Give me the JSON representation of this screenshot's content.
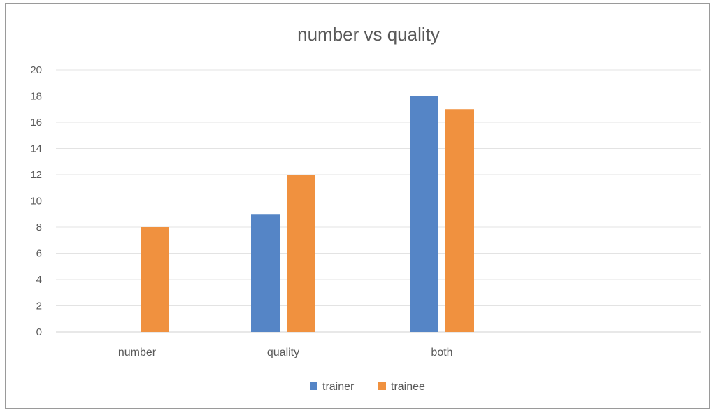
{
  "chart_data": {
    "type": "bar",
    "title": "number vs quality",
    "xlabel": "",
    "ylabel": "",
    "categories": [
      "number",
      "quality",
      "both"
    ],
    "series": [
      {
        "name": "trainer",
        "values": [
          0,
          9,
          18
        ],
        "color": "#5585C6"
      },
      {
        "name": "trainee",
        "values": [
          8,
          12,
          17
        ],
        "color": "#F0913F"
      }
    ],
    "ylim": [
      0,
      20
    ],
    "yticks": [
      "0",
      "2",
      "4",
      "6",
      "8",
      "10",
      "12",
      "14",
      "16",
      "18",
      "20"
    ],
    "grid": true,
    "legend_position": "bottom"
  }
}
